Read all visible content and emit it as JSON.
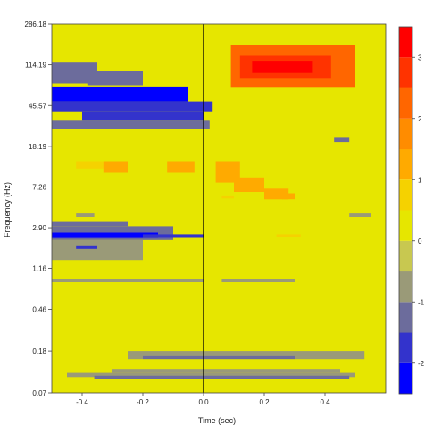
{
  "chart_data": {
    "type": "heatmap",
    "title": "",
    "xlabel": "Time (sec)",
    "ylabel": "Frequency (Hz)",
    "xlim": [
      -0.5,
      0.6
    ],
    "ylim_hz": [
      0.07,
      286.18
    ],
    "y_scale": "log",
    "x_ticks": [
      -0.4,
      -0.2,
      0.0,
      0.2,
      0.4
    ],
    "x_tick_labels": [
      "-0.4",
      "-0.2",
      "0.0",
      "0.2",
      "0.4"
    ],
    "y_tick_labels": [
      "286.18",
      "114.19",
      "45.57",
      "18.19",
      "7.26",
      "2.90",
      "1.16",
      "0.46",
      "0.18",
      "0.07"
    ],
    "y_tick_values": [
      286.18,
      114.19,
      45.57,
      18.19,
      7.26,
      2.9,
      1.16,
      0.46,
      0.18,
      0.07
    ],
    "event_marker_x": 0.0,
    "background_level": 0,
    "colorbar": {
      "levels": [
        {
          "min": -2.5,
          "max": -2.0,
          "color": "#0000ff"
        },
        {
          "min": -2.0,
          "max": -1.5,
          "color": "#3333cc"
        },
        {
          "min": -1.5,
          "max": -1.0,
          "color": "#6c6c9c"
        },
        {
          "min": -1.0,
          "max": -0.5,
          "color": "#9a9a78"
        },
        {
          "min": -0.5,
          "max": 0.0,
          "color": "#c8c850"
        },
        {
          "min": 0.0,
          "max": 0.5,
          "color": "#e6e600"
        },
        {
          "min": 0.5,
          "max": 1.0,
          "color": "#f5d200"
        },
        {
          "min": 1.0,
          "max": 1.5,
          "color": "#ffaa00"
        },
        {
          "min": 1.5,
          "max": 2.0,
          "color": "#ff8c00"
        },
        {
          "min": 2.0,
          "max": 2.5,
          "color": "#ff6600"
        },
        {
          "min": 2.5,
          "max": 3.0,
          "color": "#ff3300"
        },
        {
          "min": 3.0,
          "max": 3.5,
          "color": "#ff0000"
        }
      ],
      "tick_values": [
        3,
        2,
        1,
        0,
        -1,
        -2
      ],
      "tick_labels": [
        "3",
        "2",
        "1",
        "0",
        "-1",
        "-2"
      ]
    },
    "regions": [
      {
        "t0": -0.5,
        "t1": -0.05,
        "f0": 50,
        "f1": 70,
        "value": -2.2
      },
      {
        "t0": -0.5,
        "t1": 0.03,
        "f0": 40,
        "f1": 50,
        "value": -2.0
      },
      {
        "t0": -0.4,
        "t1": 0.0,
        "f0": 33,
        "f1": 40,
        "value": -1.8
      },
      {
        "t0": -0.5,
        "t1": -0.35,
        "f0": 75,
        "f1": 120,
        "value": -1.2
      },
      {
        "t0": -0.38,
        "t1": -0.2,
        "f0": 72,
        "f1": 100,
        "value": -1.3
      },
      {
        "t0": -0.5,
        "t1": 0.02,
        "f0": 27,
        "f1": 33,
        "value": -1.4
      },
      {
        "t0": 0.09,
        "t1": 0.5,
        "f0": 68,
        "f1": 180,
        "value": 2.3
      },
      {
        "t0": 0.12,
        "t1": 0.42,
        "f0": 85,
        "f1": 140,
        "value": 2.8
      },
      {
        "t0": 0.16,
        "t1": 0.36,
        "f0": 95,
        "f1": 125,
        "value": 3.2
      },
      {
        "t0": -0.42,
        "t1": -0.33,
        "f0": 11,
        "f1": 13,
        "value": 0.8
      },
      {
        "t0": -0.33,
        "t1": -0.25,
        "f0": 10,
        "f1": 13,
        "value": 1.4
      },
      {
        "t0": -0.12,
        "t1": -0.03,
        "f0": 10,
        "f1": 13,
        "value": 1.4
      },
      {
        "t0": 0.04,
        "t1": 0.12,
        "f0": 8,
        "f1": 13,
        "value": 1.4
      },
      {
        "t0": 0.1,
        "t1": 0.2,
        "f0": 6.5,
        "f1": 9,
        "value": 1.2
      },
      {
        "t0": 0.2,
        "t1": 0.28,
        "f0": 5.5,
        "f1": 7,
        "value": 1.0
      },
      {
        "t0": 0.26,
        "t1": 0.3,
        "f0": 5.5,
        "f1": 6.3,
        "value": 1.3
      },
      {
        "t0": -0.5,
        "t1": -0.25,
        "f0": 3.0,
        "f1": 3.3,
        "value": -1.2
      },
      {
        "t0": -0.5,
        "t1": -0.1,
        "f0": 2.2,
        "f1": 3.0,
        "value": -1.1
      },
      {
        "t0": -0.5,
        "t1": -0.15,
        "f0": 2.3,
        "f1": 2.6,
        "value": -2.1
      },
      {
        "t0": -0.5,
        "t1": -0.2,
        "f0": 1.4,
        "f1": 2.2,
        "value": -1.0
      },
      {
        "t0": -0.42,
        "t1": -0.35,
        "f0": 1.8,
        "f1": 1.95,
        "value": -2.0
      },
      {
        "t0": -0.2,
        "t1": 0.0,
        "f0": 2.3,
        "f1": 2.5,
        "value": -1.7
      },
      {
        "t0": -0.42,
        "t1": -0.36,
        "f0": 3.7,
        "f1": 4.0,
        "value": -1.0
      },
      {
        "t0": 0.48,
        "t1": 0.55,
        "f0": 3.7,
        "f1": 4.0,
        "value": -0.7
      },
      {
        "t0": -0.5,
        "t1": 0.0,
        "f0": 0.85,
        "f1": 0.92,
        "value": -0.6
      },
      {
        "t0": 0.06,
        "t1": 0.3,
        "f0": 0.85,
        "f1": 0.92,
        "value": -0.6
      },
      {
        "t0": 0.24,
        "t1": 0.32,
        "f0": 2.35,
        "f1": 2.5,
        "value": 0.7
      },
      {
        "t0": 0.06,
        "t1": 0.1,
        "f0": 5.6,
        "f1": 6.0,
        "value": 0.7
      },
      {
        "t0": 0.43,
        "t1": 0.48,
        "f0": 20,
        "f1": 22,
        "value": -1.3
      },
      {
        "t0": -0.25,
        "t1": 0.53,
        "f0": 0.15,
        "f1": 0.18,
        "value": -0.7
      },
      {
        "t0": -0.2,
        "t1": 0.3,
        "f0": 0.15,
        "f1": 0.16,
        "value": -1.2
      },
      {
        "t0": -0.3,
        "t1": 0.45,
        "f0": 0.11,
        "f1": 0.12,
        "value": -0.7
      },
      {
        "t0": -0.45,
        "t1": 0.5,
        "f0": 0.1,
        "f1": 0.11,
        "value": -0.6
      },
      {
        "t0": -0.36,
        "t1": 0.48,
        "f0": 0.095,
        "f1": 0.103,
        "value": -1.1
      }
    ]
  }
}
